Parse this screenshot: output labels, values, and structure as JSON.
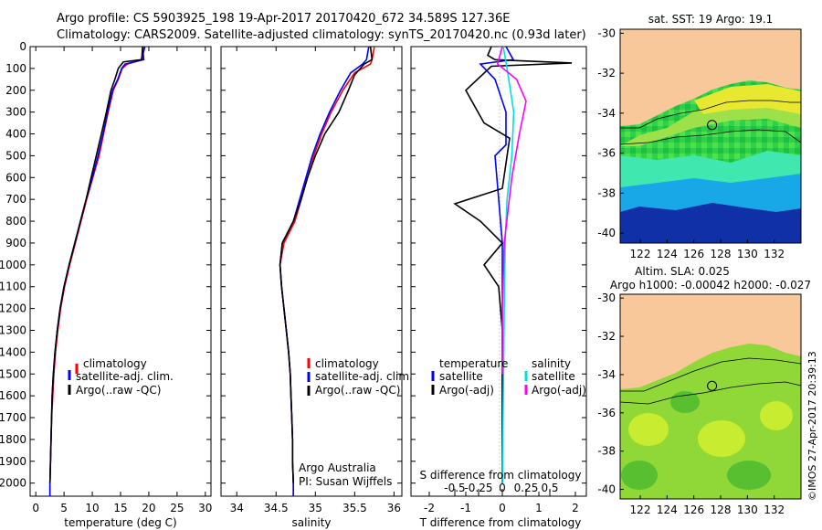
{
  "header": {
    "line1": "Argo profile: CS 5903925_198 19-Apr-2017 20170420_672 34.589S 127.36E",
    "line2": "Climatology: CARS2009. Satellite-adjusted climatology: synTS_20170420.nc (0.93d later)"
  },
  "colors": {
    "climatology": "#ff0000",
    "satellite": "#0000ff",
    "argo": "#000000",
    "sat_cyan": "#00e0e0",
    "argo_magenta": "#ff00ff",
    "land": "#f8c89a"
  },
  "chart_data": [
    {
      "type": "line",
      "title": "",
      "xlabel": "temperature (deg C)",
      "ylabel": "",
      "xlim": [
        -1,
        31
      ],
      "ylim": [
        2060,
        0
      ],
      "xticks": [
        "0",
        "5",
        "10",
        "15",
        "20",
        "25",
        "30"
      ],
      "yticks": [
        "0",
        "100",
        "200",
        "300",
        "400",
        "500",
        "600",
        "700",
        "800",
        "900",
        "1000",
        "1100",
        "1200",
        "1300",
        "1400",
        "1500",
        "1600",
        "1700",
        "1800",
        "1900",
        "2000"
      ],
      "legend": [
        "climatology",
        "satellite-adj. clim.",
        "Argo(..raw -QC)"
      ],
      "series": [
        {
          "name": "climatology",
          "color": "#ff0000",
          "points": [
            [
              19.2,
              0
            ],
            [
              19.0,
              30
            ],
            [
              18.9,
              60
            ],
            [
              16.2,
              80
            ],
            [
              15.3,
              100
            ],
            [
              14.6,
              150
            ],
            [
              13.7,
              200
            ],
            [
              12.8,
              300
            ],
            [
              12.0,
              400
            ],
            [
              11.2,
              500
            ],
            [
              10.1,
              600
            ],
            [
              9.0,
              700
            ],
            [
              8.0,
              800
            ],
            [
              7.0,
              900
            ],
            [
              6.0,
              1000
            ],
            [
              5.1,
              1100
            ],
            [
              4.4,
              1200
            ],
            [
              3.9,
              1300
            ],
            [
              3.5,
              1400
            ],
            [
              3.2,
              1500
            ],
            [
              3.0,
              1600
            ],
            [
              2.8,
              1700
            ],
            [
              2.7,
              1800
            ],
            [
              2.6,
              1900
            ],
            [
              2.5,
              2000
            ],
            [
              2.5,
              2060
            ]
          ]
        },
        {
          "name": "satellite-adj. clim.",
          "color": "#0000ff",
          "points": [
            [
              19.3,
              0
            ],
            [
              19.0,
              30
            ],
            [
              19.1,
              60
            ],
            [
              15.8,
              80
            ],
            [
              15.2,
              100
            ],
            [
              14.5,
              150
            ],
            [
              13.6,
              200
            ],
            [
              12.7,
              300
            ],
            [
              11.9,
              400
            ],
            [
              11.0,
              500
            ],
            [
              10.0,
              600
            ],
            [
              8.9,
              700
            ],
            [
              7.9,
              800
            ],
            [
              6.9,
              900
            ],
            [
              5.9,
              1000
            ],
            [
              5.0,
              1100
            ],
            [
              4.3,
              1200
            ],
            [
              3.8,
              1300
            ],
            [
              3.4,
              1400
            ],
            [
              3.1,
              1500
            ],
            [
              2.9,
              1600
            ],
            [
              2.8,
              1700
            ],
            [
              2.7,
              1800
            ],
            [
              2.6,
              1900
            ],
            [
              2.5,
              2000
            ],
            [
              2.5,
              2060
            ]
          ]
        },
        {
          "name": "Argo(..raw -QC)",
          "color": "#000000",
          "points": [
            [
              18.9,
              0
            ],
            [
              18.8,
              40
            ],
            [
              18.7,
              60
            ],
            [
              15.5,
              70
            ],
            [
              14.6,
              100
            ],
            [
              14.0,
              150
            ],
            [
              13.3,
              200
            ],
            [
              12.5,
              300
            ],
            [
              11.6,
              400
            ],
            [
              10.7,
              500
            ],
            [
              9.8,
              600
            ],
            [
              8.9,
              700
            ],
            [
              7.9,
              800
            ],
            [
              6.9,
              900
            ],
            [
              5.9,
              1000
            ],
            [
              5.0,
              1100
            ],
            [
              4.3,
              1200
            ],
            [
              3.8,
              1300
            ],
            [
              3.4,
              1400
            ],
            [
              3.1,
              1500
            ],
            [
              2.9,
              1600
            ],
            [
              2.8,
              1700
            ],
            [
              2.7,
              1800
            ],
            [
              2.6,
              1900
            ],
            [
              2.5,
              2000
            ]
          ]
        }
      ]
    },
    {
      "type": "line",
      "title": "",
      "xlabel": "salinity",
      "xlim": [
        33.8,
        36.1
      ],
      "ylim": [
        2060,
        0
      ],
      "xticks": [
        "34",
        "34.5",
        "35",
        "35.5",
        "36"
      ],
      "legend": [
        "climatology",
        "satellite-adj. clim.",
        "Argo(..raw -QC)"
      ],
      "annotations": [
        "Argo Australia",
        "PI: Susan Wijffels"
      ],
      "series": [
        {
          "name": "climatology",
          "color": "#ff0000",
          "points": [
            [
              35.75,
              0
            ],
            [
              35.72,
              60
            ],
            [
              35.7,
              80
            ],
            [
              35.5,
              120
            ],
            [
              35.35,
              200
            ],
            [
              35.2,
              300
            ],
            [
              35.08,
              400
            ],
            [
              34.98,
              500
            ],
            [
              34.9,
              600
            ],
            [
              34.82,
              700
            ],
            [
              34.74,
              800
            ],
            [
              34.6,
              900
            ],
            [
              34.55,
              1000
            ],
            [
              34.57,
              1100
            ],
            [
              34.6,
              1200
            ],
            [
              34.63,
              1300
            ],
            [
              34.66,
              1400
            ],
            [
              34.68,
              1500
            ],
            [
              34.69,
              1600
            ],
            [
              34.7,
              1700
            ],
            [
              34.71,
              1800
            ],
            [
              34.71,
              1900
            ],
            [
              34.72,
              2000
            ],
            [
              34.72,
              2060
            ]
          ]
        },
        {
          "name": "satellite-adj. clim.",
          "color": "#0000ff",
          "points": [
            [
              35.68,
              0
            ],
            [
              35.65,
              60
            ],
            [
              35.6,
              80
            ],
            [
              35.45,
              120
            ],
            [
              35.32,
              200
            ],
            [
              35.18,
              300
            ],
            [
              35.06,
              400
            ],
            [
              34.96,
              500
            ],
            [
              34.88,
              600
            ],
            [
              34.8,
              700
            ],
            [
              34.72,
              800
            ],
            [
              34.58,
              900
            ],
            [
              34.55,
              1000
            ],
            [
              34.57,
              1100
            ],
            [
              34.6,
              1200
            ],
            [
              34.63,
              1300
            ],
            [
              34.66,
              1400
            ],
            [
              34.68,
              1500
            ],
            [
              34.69,
              1600
            ],
            [
              34.7,
              1700
            ],
            [
              34.71,
              1800
            ],
            [
              34.71,
              1900
            ],
            [
              34.72,
              2000
            ],
            [
              34.72,
              2060
            ]
          ]
        },
        {
          "name": "Argo(..raw -QC)",
          "color": "#000000",
          "points": [
            [
              35.7,
              0
            ],
            [
              35.72,
              60
            ],
            [
              35.62,
              80
            ],
            [
              35.5,
              130
            ],
            [
              35.42,
              200
            ],
            [
              35.3,
              300
            ],
            [
              35.12,
              400
            ],
            [
              35.0,
              500
            ],
            [
              34.9,
              600
            ],
            [
              34.82,
              700
            ],
            [
              34.72,
              800
            ],
            [
              34.58,
              900
            ],
            [
              34.55,
              1000
            ],
            [
              34.57,
              1100
            ],
            [
              34.6,
              1200
            ],
            [
              34.63,
              1300
            ],
            [
              34.66,
              1400
            ],
            [
              34.68,
              1500
            ],
            [
              34.69,
              1600
            ],
            [
              34.7,
              1700
            ],
            [
              34.71,
              1800
            ],
            [
              34.71,
              1900
            ],
            [
              34.72,
              2000
            ]
          ]
        }
      ]
    },
    {
      "type": "line",
      "title": "",
      "xlabel": "T difference from climatology",
      "x2label": "S difference from climatology",
      "xlim": [
        -2.5,
        2.3
      ],
      "ylim": [
        2060,
        0
      ],
      "xticks": [
        "-2",
        "-1",
        "0",
        "1",
        "2"
      ],
      "x2ticks": [
        "-0.5",
        "-0.25",
        "0",
        "0.25",
        "0.5"
      ],
      "legend_temperature": {
        "heading": "temperature",
        "items": [
          "satellite",
          "Argo(-adj)"
        ]
      },
      "legend_salinity": {
        "heading": "salinity",
        "items": [
          "satellite",
          "Argo(-adj)"
        ]
      },
      "series": [
        {
          "name": "temperature satellite",
          "color": "#0000ff",
          "points": [
            [
              0.1,
              0
            ],
            [
              0.3,
              60
            ],
            [
              -0.6,
              80
            ],
            [
              -0.2,
              150
            ],
            [
              0.1,
              300
            ],
            [
              0.1,
              450
            ],
            [
              -0.2,
              500
            ],
            [
              -0.1,
              700
            ],
            [
              0.0,
              900
            ],
            [
              0.0,
              1200
            ],
            [
              0.0,
              2000
            ]
          ]
        },
        {
          "name": "temperature Argo(-adj)",
          "color": "#000000",
          "points": [
            [
              -0.3,
              0
            ],
            [
              -0.4,
              40
            ],
            [
              -0.2,
              60
            ],
            [
              1.9,
              75
            ],
            [
              -0.3,
              90
            ],
            [
              -1.0,
              200
            ],
            [
              -0.5,
              350
            ],
            [
              0.2,
              420
            ],
            [
              0.0,
              650
            ],
            [
              -1.3,
              720
            ],
            [
              -0.6,
              800
            ],
            [
              0.0,
              900
            ],
            [
              -0.5,
              1000
            ],
            [
              -0.1,
              1100
            ],
            [
              0.0,
              1300
            ],
            [
              0.0,
              2000
            ]
          ]
        },
        {
          "name": "salinity satellite",
          "color": "#00e0e0",
          "points": [
            [
              0.01,
              0
            ],
            [
              0.05,
              100
            ],
            [
              0.12,
              300
            ],
            [
              0.1,
              500
            ],
            [
              0.05,
              700
            ],
            [
              0.03,
              900
            ],
            [
              0.02,
              1200
            ],
            [
              0.0,
              2000
            ]
          ]
        },
        {
          "name": "salinity Argo(-adj)",
          "color": "#ff00ff",
          "points": [
            [
              0.0,
              0
            ],
            [
              -0.05,
              80
            ],
            [
              0.15,
              150
            ],
            [
              0.25,
              250
            ],
            [
              0.18,
              400
            ],
            [
              0.1,
              600
            ],
            [
              0.02,
              900
            ],
            [
              0.0,
              1200
            ],
            [
              0.0,
              1500
            ]
          ]
        }
      ]
    },
    {
      "type": "heatmap",
      "title": "sat. SST: 19 Argo: 19.1",
      "xticks": [
        "122",
        "124",
        "126",
        "128",
        "130",
        "132"
      ],
      "yticks": [
        "-30",
        "-32",
        "-34",
        "-36",
        "-38",
        "-40"
      ],
      "xlim": [
        120.5,
        134
      ],
      "ylim": [
        -40.5,
        -29.8
      ],
      "marker": {
        "lon": 127.36,
        "lat": -34.589
      }
    },
    {
      "type": "heatmap",
      "title": "Altim. SLA: 0.025",
      "subtitle": "Argo h1000: -0.00042 h2000: -0.027",
      "xticks": [
        "122",
        "124",
        "126",
        "128",
        "130",
        "132"
      ],
      "yticks": [
        "-30",
        "-32",
        "-34",
        "-36",
        "-38",
        "-40"
      ],
      "xlim": [
        120.5,
        134
      ],
      "ylim": [
        -40.5,
        -29.8
      ],
      "marker": {
        "lon": 127.36,
        "lat": -34.589
      }
    }
  ],
  "watermark": "©IMOS 27-Apr-2017 20:39:13"
}
